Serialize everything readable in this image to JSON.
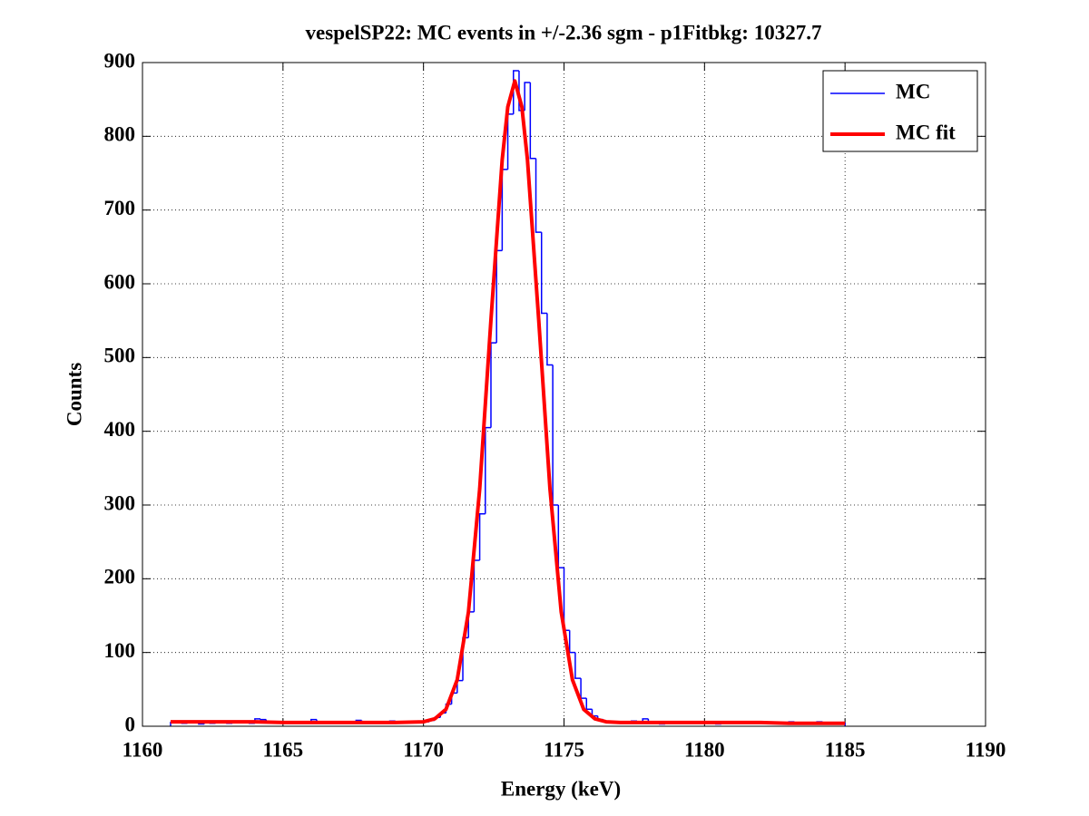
{
  "chart_data": {
    "type": "histogram",
    "title": "vespelSP22: MC events in +/-2.36 sgm - p1Fitbkg: 10327.7",
    "xlabel": "Energy (keV)",
    "ylabel": "Counts",
    "xlim": [
      1160,
      1190
    ],
    "ylim": [
      0,
      900
    ],
    "xticks": [
      1160,
      1165,
      1170,
      1175,
      1180,
      1185,
      1190
    ],
    "yticks": [
      0,
      100,
      200,
      300,
      400,
      500,
      600,
      700,
      800,
      900
    ],
    "grid": true,
    "legend": "upper right",
    "bins": [
      1161,
      1161.2,
      1161.4,
      1161.6,
      1161.8,
      1162,
      1162.2,
      1162.4,
      1162.6,
      1162.8,
      1163,
      1163.2,
      1163.4,
      1163.6,
      1163.8,
      1164,
      1164.2,
      1164.4,
      1164.6,
      1164.8,
      1165,
      1165.2,
      1165.4,
      1165.6,
      1165.8,
      1166,
      1166.2,
      1166.4,
      1166.6,
      1166.8,
      1167,
      1167.2,
      1167.4,
      1167.6,
      1167.8,
      1168,
      1168.2,
      1168.4,
      1168.6,
      1168.8,
      1169,
      1169.2,
      1169.4,
      1169.6,
      1169.8,
      1170,
      1170.2,
      1170.4,
      1170.6,
      1170.8,
      1171,
      1171.2,
      1171.4,
      1171.6,
      1171.8,
      1172,
      1172.2,
      1172.4,
      1172.6,
      1172.8,
      1173,
      1173.2,
      1173.4,
      1173.6,
      1173.8,
      1174,
      1174.2,
      1174.4,
      1174.6,
      1174.8,
      1175,
      1175.2,
      1175.4,
      1175.6,
      1175.8,
      1176,
      1176.2,
      1176.4,
      1176.6,
      1176.8,
      1177,
      1177.2,
      1177.4,
      1177.6,
      1177.8,
      1178,
      1178.2,
      1178.4,
      1178.6,
      1178.8,
      1179,
      1179.2,
      1179.4,
      1179.6,
      1179.8,
      1180,
      1180.2,
      1180.4,
      1180.6,
      1180.8,
      1181,
      1181.2,
      1181.4,
      1181.6,
      1181.8,
      1182,
      1182.2,
      1182.4,
      1182.6,
      1182.8,
      1183,
      1183.2,
      1183.4,
      1183.6,
      1183.8,
      1184,
      1184.2,
      1184.4,
      1184.6,
      1184.8,
      1185
    ],
    "series": [
      {
        "name": "MC",
        "type": "histogram",
        "color": "#0000ff",
        "values": [
          5,
          6,
          4,
          5,
          5,
          3,
          5,
          4,
          6,
          5,
          4,
          5,
          5,
          6,
          4,
          10,
          9,
          5,
          4,
          5,
          6,
          5,
          4,
          5,
          5,
          9,
          5,
          4,
          6,
          5,
          4,
          5,
          6,
          8,
          5,
          6,
          4,
          5,
          5,
          7,
          4,
          5,
          6,
          5,
          6,
          6,
          8,
          12,
          18,
          30,
          45,
          62,
          120,
          155,
          225,
          288,
          405,
          520,
          645,
          755,
          830,
          889,
          835,
          873,
          770,
          670,
          560,
          490,
          300,
          215,
          130,
          100,
          65,
          38,
          23,
          14,
          9,
          6,
          5,
          4,
          6,
          5,
          7,
          5,
          10,
          4,
          5,
          3,
          5,
          4,
          5,
          5,
          6,
          4,
          5,
          5,
          4,
          3,
          5,
          6,
          5,
          4,
          5,
          5,
          6,
          4,
          5,
          5,
          5,
          4,
          6,
          5,
          5,
          4,
          5,
          6,
          3,
          5,
          5,
          4
        ]
      },
      {
        "name": "MC fit",
        "type": "line",
        "color": "#ff0000",
        "x": [
          1161,
          1162,
          1163,
          1164,
          1165,
          1166,
          1167,
          1168,
          1169,
          1170,
          1170.4,
          1170.8,
          1171.2,
          1171.6,
          1172,
          1172.4,
          1172.8,
          1173,
          1173.25,
          1173.5,
          1173.7,
          1174.1,
          1174.5,
          1174.9,
          1175.3,
          1175.7,
          1176.1,
          1176.5,
          1177,
          1178,
          1179,
          1180,
          1181,
          1182,
          1183,
          1184,
          1185
        ],
        "values": [
          6,
          6,
          6,
          6,
          5,
          5,
          5,
          5,
          5,
          6,
          10,
          23,
          63,
          155,
          322,
          551,
          768,
          840,
          875,
          840,
          768,
          551,
          322,
          155,
          63,
          23,
          10,
          6,
          5,
          5,
          5,
          5,
          5,
          5,
          4,
          4,
          4
        ]
      }
    ]
  }
}
